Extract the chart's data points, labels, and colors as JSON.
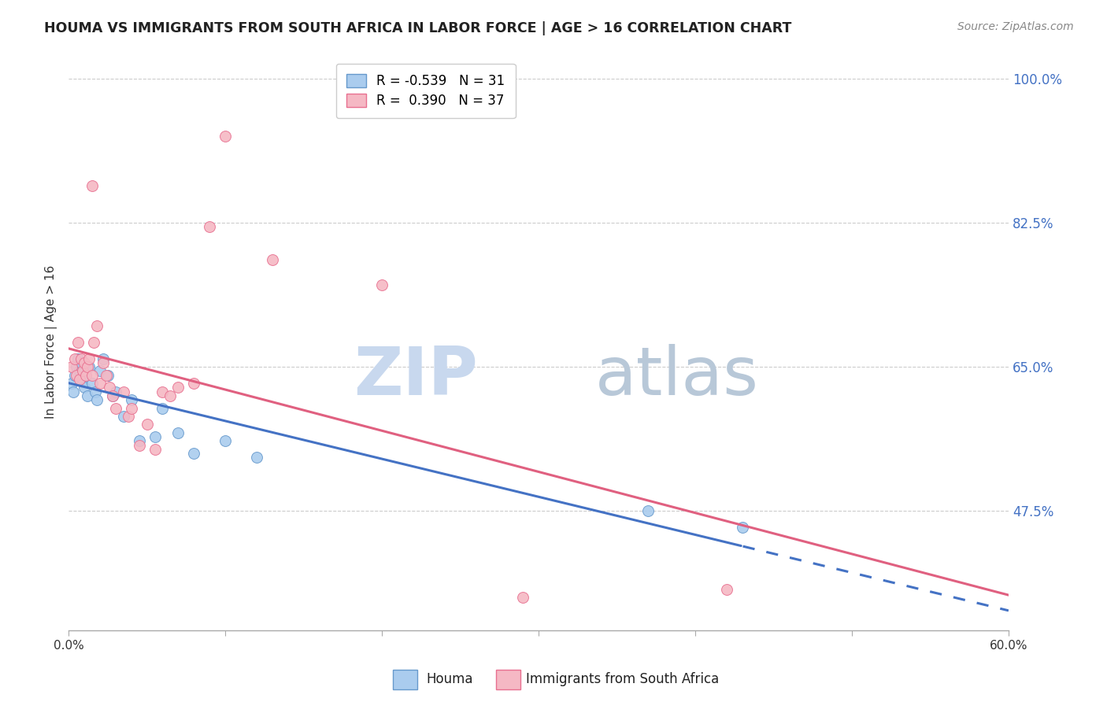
{
  "title": "HOUMA VS IMMIGRANTS FROM SOUTH AFRICA IN LABOR FORCE | AGE > 16 CORRELATION CHART",
  "source": "Source: ZipAtlas.com",
  "ylabel": "In Labor Force | Age > 16",
  "xlim": [
    0.0,
    0.6
  ],
  "ylim": [
    0.33,
    1.03
  ],
  "xticks": [
    0.0,
    0.1,
    0.2,
    0.3,
    0.4,
    0.5,
    0.6
  ],
  "xticklabels": [
    "0.0%",
    "",
    "",
    "",
    "",
    "",
    "60.0%"
  ],
  "ytick_positions": [
    0.475,
    0.65,
    0.825,
    1.0
  ],
  "ytick_labels": [
    "47.5%",
    "65.0%",
    "82.5%",
    "100.0%"
  ],
  "houma_color": "#aaccee",
  "houma_edge": "#6699cc",
  "immigrants_color": "#f5b8c4",
  "immigrants_edge": "#e87090",
  "trend_blue": "#4472c4",
  "trend_pink": "#e06080",
  "R_houma": -0.539,
  "N_houma": 31,
  "R_immigrants": 0.39,
  "N_immigrants": 37,
  "watermark_zip": "ZIP",
  "watermark_atlas": "atlas",
  "watermark_color_zip": "#c8d8ee",
  "watermark_color_atlas": "#b8c8d8",
  "background": "#ffffff",
  "grid_color": "#cccccc",
  "houma_points_x": [
    0.002,
    0.003,
    0.004,
    0.005,
    0.006,
    0.007,
    0.008,
    0.009,
    0.01,
    0.011,
    0.012,
    0.013,
    0.015,
    0.017,
    0.018,
    0.02,
    0.022,
    0.025,
    0.028,
    0.03,
    0.035,
    0.04,
    0.045,
    0.055,
    0.06,
    0.07,
    0.08,
    0.1,
    0.12,
    0.37,
    0.43
  ],
  "houma_points_y": [
    0.63,
    0.62,
    0.64,
    0.65,
    0.66,
    0.645,
    0.655,
    0.635,
    0.625,
    0.64,
    0.615,
    0.65,
    0.63,
    0.62,
    0.61,
    0.645,
    0.66,
    0.64,
    0.615,
    0.62,
    0.59,
    0.61,
    0.56,
    0.565,
    0.6,
    0.57,
    0.545,
    0.56,
    0.54,
    0.475,
    0.455
  ],
  "immigrants_points_x": [
    0.002,
    0.004,
    0.005,
    0.006,
    0.007,
    0.008,
    0.009,
    0.01,
    0.011,
    0.012,
    0.013,
    0.015,
    0.016,
    0.018,
    0.02,
    0.022,
    0.024,
    0.026,
    0.028,
    0.03,
    0.035,
    0.038,
    0.04,
    0.045,
    0.05,
    0.055,
    0.06,
    0.065,
    0.07,
    0.08,
    0.09,
    0.1,
    0.13,
    0.2,
    0.29,
    0.42,
    0.015
  ],
  "immigrants_points_y": [
    0.65,
    0.66,
    0.64,
    0.68,
    0.635,
    0.66,
    0.645,
    0.655,
    0.64,
    0.65,
    0.66,
    0.64,
    0.68,
    0.7,
    0.63,
    0.655,
    0.64,
    0.625,
    0.615,
    0.6,
    0.62,
    0.59,
    0.6,
    0.555,
    0.58,
    0.55,
    0.62,
    0.615,
    0.625,
    0.63,
    0.82,
    0.93,
    0.78,
    0.75,
    0.37,
    0.38,
    0.87
  ]
}
